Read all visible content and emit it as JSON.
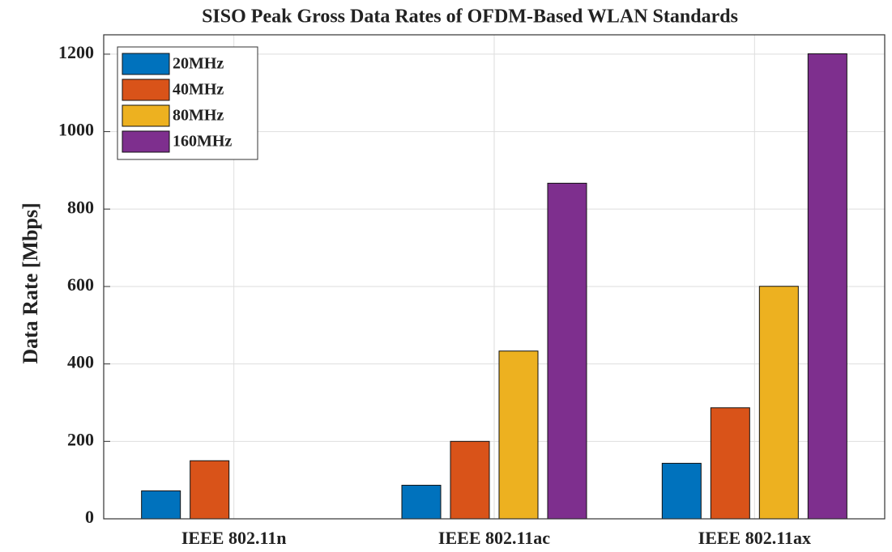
{
  "chart_data": {
    "type": "bar",
    "title": "SISO Peak Gross Data Rates of OFDM-Based WLAN Standards",
    "y_label": "Data Rate [Mbps]",
    "categories": [
      "IEEE 802.11n",
      "IEEE 802.11ac",
      "IEEE 802.11ax"
    ],
    "series": [
      {
        "name": "20MHz",
        "color": "#0072bd",
        "values": [
          72.2,
          86.7,
          143.4
        ]
      },
      {
        "name": "40MHz",
        "color": "#d95319",
        "values": [
          150,
          200,
          286.8
        ]
      },
      {
        "name": "80MHz",
        "color": "#edb120",
        "values": [
          null,
          433.3,
          600.5
        ]
      },
      {
        "name": "160MHz",
        "color": "#7e2f8e",
        "values": [
          null,
          866.7,
          1201
        ]
      }
    ],
    "ylim": [
      0,
      1250
    ],
    "yticks": [
      0,
      200,
      400,
      600,
      800,
      1000,
      1200
    ],
    "grid": true,
    "legend": "upper-left"
  }
}
